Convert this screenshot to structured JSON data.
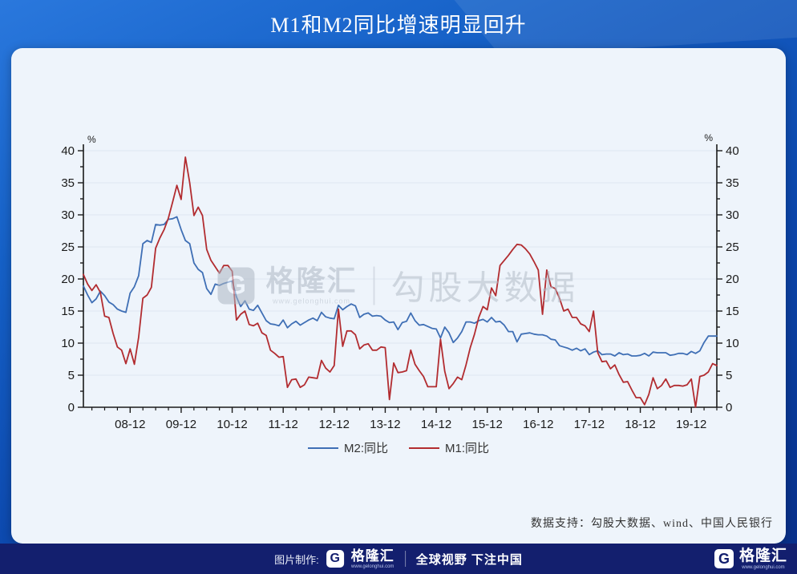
{
  "header": {
    "title": "M1和M2同比增速明显回升"
  },
  "watermark": {
    "logo_letter": "G",
    "brand": "格隆汇",
    "brand_url": "www.gelonghui.com",
    "product": "勾股大数据"
  },
  "chart_data": {
    "type": "line",
    "title": "",
    "unit": "%",
    "x_start": "2008-01",
    "x_end": "2020-06",
    "x_tick_labels": [
      "08-12",
      "09-12",
      "10-12",
      "11-12",
      "12-12",
      "13-12",
      "14-12",
      "15-12",
      "16-12",
      "17-12",
      "18-12",
      "19-12"
    ],
    "ylim": [
      0,
      40
    ],
    "y_ticks": [
      0,
      5,
      10,
      15,
      20,
      25,
      30,
      35,
      40
    ],
    "grid": "horizontal",
    "legend_position": "bottom",
    "series": [
      {
        "name": "M2:同比",
        "color": "#3f6fb5",
        "values": [
          18.9,
          17.5,
          16.3,
          16.9,
          18.1,
          17.4,
          16.4,
          16.0,
          15.3,
          15.0,
          14.8,
          17.8,
          18.8,
          20.5,
          25.5,
          26.0,
          25.7,
          28.5,
          28.4,
          28.5,
          29.3,
          29.4,
          29.7,
          27.7,
          26.0,
          25.5,
          22.5,
          21.5,
          21.0,
          18.5,
          17.6,
          19.2,
          19.0,
          19.3,
          19.5,
          19.7,
          17.2,
          15.7,
          16.6,
          15.3,
          15.1,
          15.9,
          14.7,
          13.5,
          13.0,
          12.9,
          12.7,
          13.6,
          12.4,
          13.0,
          13.4,
          12.8,
          13.2,
          13.6,
          13.9,
          13.5,
          14.8,
          14.1,
          13.9,
          13.8,
          15.9,
          15.2,
          15.7,
          16.1,
          15.8,
          14.0,
          14.5,
          14.7,
          14.2,
          14.3,
          14.2,
          13.6,
          13.2,
          13.3,
          12.1,
          13.2,
          13.4,
          14.7,
          13.5,
          12.8,
          12.9,
          12.6,
          12.3,
          12.2,
          10.8,
          12.5,
          11.6,
          10.1,
          10.8,
          11.8,
          13.3,
          13.3,
          13.1,
          13.5,
          13.7,
          13.3,
          14.0,
          13.3,
          13.4,
          12.8,
          11.8,
          11.8,
          10.2,
          11.4,
          11.5,
          11.6,
          11.4,
          11.3,
          11.3,
          11.1,
          10.6,
          10.5,
          9.6,
          9.4,
          9.2,
          8.9,
          9.2,
          8.8,
          9.1,
          8.2,
          8.6,
          8.8,
          8.2,
          8.3,
          8.3,
          8.0,
          8.5,
          8.2,
          8.3,
          8.0,
          8.0,
          8.1,
          8.4,
          8.0,
          8.6,
          8.5,
          8.5,
          8.5,
          8.1,
          8.2,
          8.4,
          8.4,
          8.2,
          8.7,
          8.4,
          8.8,
          10.1,
          11.1,
          11.1,
          11.1
        ]
      },
      {
        "name": "M1:同比",
        "color": "#b22c30",
        "values": [
          20.7,
          19.2,
          18.2,
          19.1,
          17.9,
          14.2,
          14.0,
          11.5,
          9.4,
          8.9,
          6.8,
          9.1,
          6.7,
          10.9,
          17.0,
          17.5,
          18.7,
          24.8,
          26.4,
          27.7,
          29.5,
          32.0,
          34.6,
          32.4,
          39.0,
          35.0,
          29.9,
          31.2,
          29.9,
          24.6,
          22.9,
          21.9,
          20.9,
          22.1,
          22.1,
          21.2,
          13.6,
          14.5,
          15.0,
          12.9,
          12.7,
          13.1,
          11.6,
          11.2,
          8.9,
          8.4,
          7.8,
          7.9,
          3.1,
          4.3,
          4.4,
          3.1,
          3.5,
          4.7,
          4.6,
          4.5,
          7.3,
          6.1,
          5.5,
          6.5,
          15.3,
          9.5,
          11.9,
          11.9,
          11.3,
          9.1,
          9.7,
          9.9,
          8.9,
          8.9,
          9.4,
          9.3,
          1.2,
          6.9,
          5.4,
          5.5,
          5.7,
          8.9,
          6.7,
          5.7,
          4.8,
          3.2,
          3.2,
          3.2,
          10.6,
          5.6,
          2.9,
          3.7,
          4.7,
          4.3,
          6.6,
          9.3,
          11.4,
          14.0,
          15.7,
          15.2,
          18.6,
          17.4,
          22.1,
          22.9,
          23.7,
          24.6,
          25.4,
          25.3,
          24.7,
          23.9,
          22.7,
          21.4,
          14.5,
          21.4,
          18.8,
          18.5,
          17.0,
          15.0,
          15.3,
          14.0,
          14.0,
          13.0,
          12.7,
          11.8,
          15.0,
          8.5,
          7.1,
          7.2,
          6.0,
          6.6,
          5.1,
          3.9,
          4.0,
          2.7,
          1.5,
          1.5,
          0.4,
          2.0,
          4.6,
          2.9,
          3.4,
          4.4,
          3.1,
          3.4,
          3.4,
          3.3,
          3.5,
          4.4,
          0.0,
          4.8,
          5.0,
          5.5,
          6.8,
          6.5
        ]
      }
    ]
  },
  "notes": {
    "data_support": "数据支持：勾股大数据、wind、中国人民银行"
  },
  "footer": {
    "made_by_label": "图片制作:",
    "logo_letter": "G",
    "brand": "格隆汇",
    "brand_url": "www.gelonghui.com",
    "slogan": "全球视野 下注中国",
    "right_logo_letter": "G",
    "right_brand": "格隆汇",
    "right_brand_url": "www.gelonghui.com"
  },
  "colors": {
    "header_gradient_start": "#2a78dd",
    "header_gradient_end": "#082e88",
    "card_bg": "#eef4fb",
    "footer_bg": "#131f6e",
    "gridline": "#dde6f1",
    "axis": "#1a1a1a",
    "m2_line": "#3f6fb5",
    "m1_line": "#b22c30"
  }
}
